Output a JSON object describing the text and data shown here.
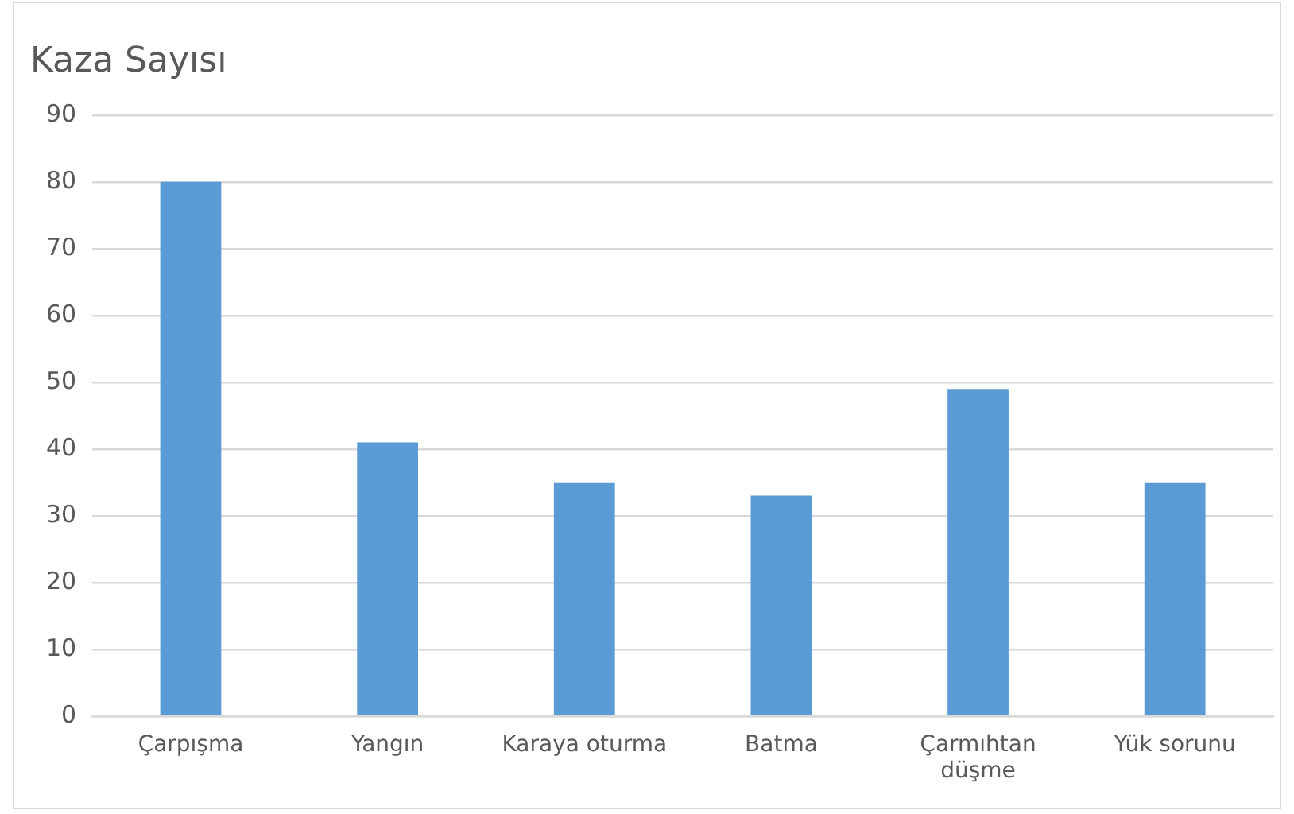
{
  "chart_data": {
    "type": "bar",
    "title": "Kaza Sayısı",
    "categories": [
      "Çarpışma",
      "Yangın",
      "Karaya oturma",
      "Batma",
      "Çarmıhtan düşme",
      "Yük sorunu"
    ],
    "values": [
      80,
      41,
      35,
      33,
      49,
      35
    ],
    "color": "#5b9bd5",
    "ylim": [
      0,
      90
    ],
    "yticks": [
      0,
      10,
      20,
      30,
      40,
      50,
      60,
      70,
      80,
      90
    ],
    "grid": "y",
    "legend": false
  }
}
